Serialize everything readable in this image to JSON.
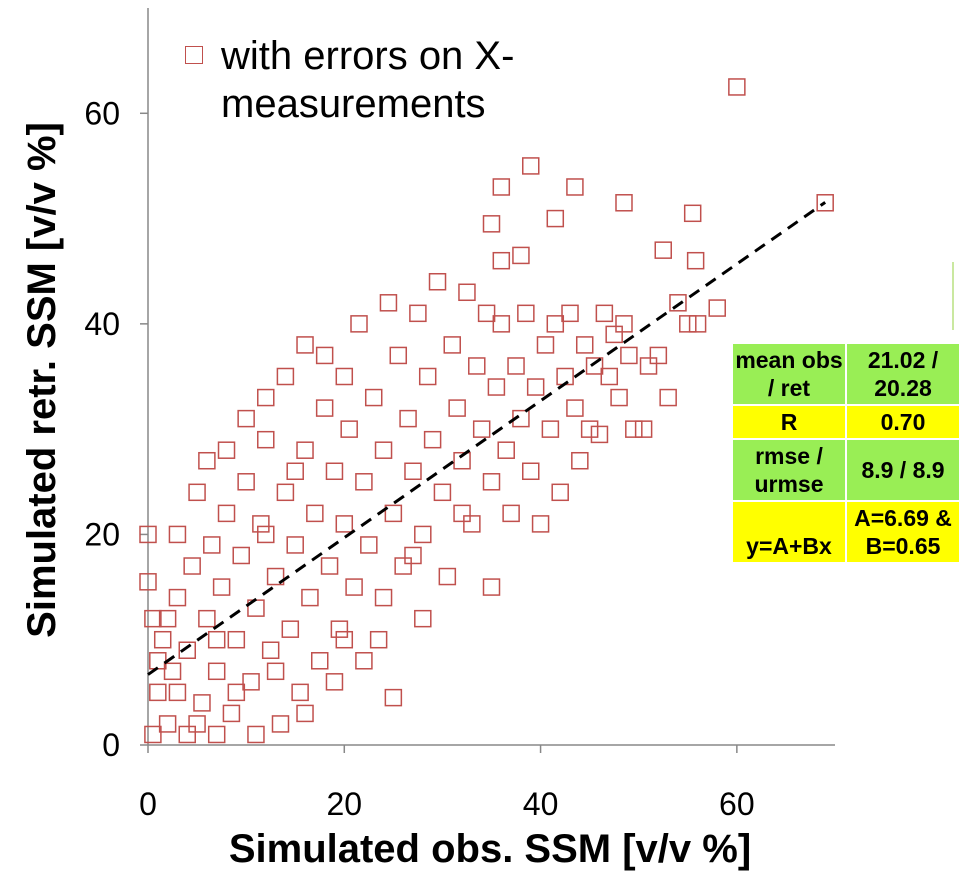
{
  "chart_data": {
    "type": "scatter",
    "x_label": "Simulated obs. SSM [v/v %]",
    "y_label": "Simulated retr. SSM [v/v %]",
    "xlim": [
      0,
      70
    ],
    "ylim": [
      0,
      70
    ],
    "xticks": [
      0,
      20,
      40,
      60
    ],
    "yticks": [
      0,
      20,
      40,
      60
    ],
    "series": [
      {
        "name": "with errors on X-measurements",
        "color": "#c0504d",
        "x": [
          0.5,
          1,
          1.5,
          0.5,
          2,
          2.5,
          3,
          3,
          4,
          4,
          4.5,
          5,
          5.5,
          6,
          6,
          6.5,
          7,
          7,
          7.5,
          8,
          8,
          8.5,
          9,
          9.5,
          10,
          10,
          10.5,
          11,
          11,
          11.5,
          12,
          12,
          12.5,
          13,
          13.5,
          14,
          14,
          14.5,
          15,
          15.5,
          16,
          16,
          16.5,
          17,
          17.5,
          18,
          18,
          18.5,
          19,
          19.5,
          20,
          20,
          20.5,
          21,
          21.5,
          22,
          22.5,
          23,
          23.5,
          24,
          24.5,
          25,
          25,
          25.5,
          26,
          26.5,
          27,
          27.5,
          28,
          28,
          28.5,
          29,
          29.5,
          30,
          30.5,
          31,
          31.5,
          32,
          32.5,
          33,
          33.5,
          34,
          34.5,
          35,
          35,
          35.5,
          36,
          36.5,
          37,
          37.5,
          38,
          38.5,
          39,
          39.5,
          40,
          40.5,
          41,
          41.5,
          42,
          42.5,
          43,
          43.5,
          44,
          44.5,
          45,
          45.5,
          46,
          46.5,
          47,
          47.5,
          48,
          48.5,
          49,
          49.5,
          50.5,
          51,
          52,
          53,
          54,
          55,
          56,
          58,
          60,
          69,
          39,
          36,
          43.5,
          48.5,
          55.5,
          41.5,
          35,
          38,
          36,
          55.8,
          52.5,
          0,
          0,
          2,
          5,
          9,
          3,
          13,
          16,
          19,
          22,
          1,
          7,
          12,
          15,
          20,
          24,
          27,
          32
        ],
        "y": [
          1,
          5,
          10,
          12,
          2,
          7,
          14,
          20,
          1,
          9,
          17,
          24,
          4,
          12,
          27,
          19,
          1,
          7,
          15,
          22,
          28,
          3,
          10,
          18,
          25,
          31,
          6,
          13,
          1,
          21,
          29,
          33,
          9,
          16,
          2,
          24,
          35,
          11,
          19,
          5,
          28,
          38,
          14,
          22,
          8,
          32,
          37,
          17,
          26,
          11,
          21,
          35,
          30,
          15,
          40,
          25,
          19,
          33,
          10,
          28,
          42,
          22,
          4.5,
          37,
          17,
          31,
          26,
          41,
          12,
          20,
          35,
          29,
          44,
          24,
          16,
          38,
          32,
          27,
          43,
          21,
          36,
          30,
          41,
          15,
          25,
          34,
          40,
          28,
          22,
          36,
          31,
          41,
          26,
          34,
          21,
          38,
          30,
          40,
          24,
          35,
          41,
          32,
          27,
          38,
          30,
          36,
          29.5,
          41,
          35,
          39,
          33,
          40,
          37,
          30,
          30,
          36,
          37,
          33,
          42,
          40,
          40,
          41.5,
          62.5,
          51.5,
          55,
          53,
          53,
          51.5,
          50.5,
          50,
          49.5,
          46.5,
          46,
          46,
          47,
          20,
          15.5,
          12,
          2,
          5,
          5,
          7,
          3,
          6,
          8,
          8,
          10,
          20,
          26,
          10,
          14,
          18,
          22
        ]
      }
    ],
    "trendline": {
      "x": [
        0,
        69
      ],
      "y": [
        6.69,
        51.54
      ],
      "color": "#000000"
    },
    "stats_table": {
      "rows": [
        {
          "cells": [
            "mean obs / ret",
            "21.02 / 20.28"
          ],
          "color": "#99ee55"
        },
        {
          "cells": [
            "R",
            "0.70"
          ],
          "color": "#ffff00"
        },
        {
          "cells": [
            "rmse / urmse",
            "8.9 / 8.9"
          ],
          "color": "#99ee55"
        },
        {
          "cells": [
            "y=A+Bx",
            "A=6.69 & B=0.65"
          ],
          "color": "#ffff00"
        }
      ]
    }
  }
}
